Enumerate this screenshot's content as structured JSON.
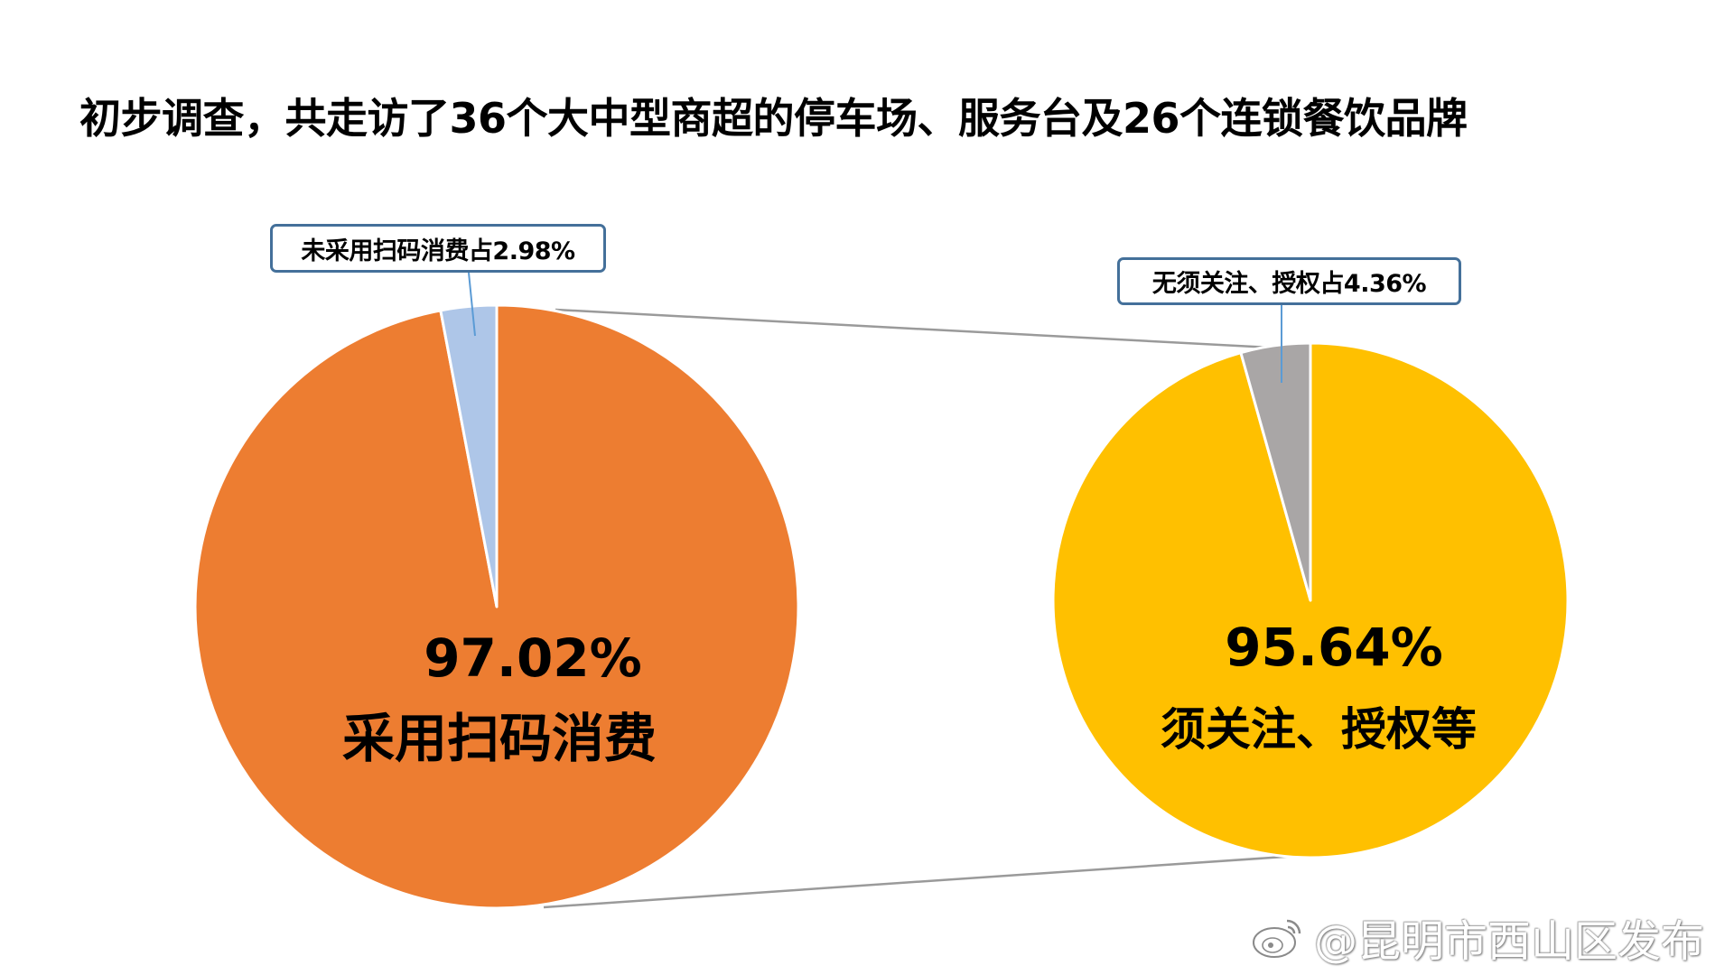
{
  "title": "初步调查，共走访了36个大中型商超的停车场、服务台及26个连锁餐饮品牌",
  "left_pie": {
    "callout": "未采用扫码消费占2.98%",
    "center_percent": "97.02%",
    "center_label": "采用扫码消费"
  },
  "right_pie": {
    "callout": "无须关注、授权占4.36%",
    "center_percent": "95.64%",
    "center_label": "须关注、授权等"
  },
  "watermark": {
    "icon": "weibo-icon",
    "text": "@昆明市西山区发布"
  },
  "colors": {
    "orange": "#ed7d31",
    "light_blue": "#aec6e8",
    "yellow": "#ffc000",
    "grey": "#a9a6a6",
    "callout_border": "#44709a",
    "connector": "#9a9a9a"
  },
  "chart_data": {
    "type": "pie",
    "title": "初步调查，共走访了36个大中型商超的停车场、服务台及26个连锁餐饮品牌",
    "layout": "pie-of-pie (two pies joined by connector lines)",
    "pies": [
      {
        "name": "扫码消费",
        "slices": [
          {
            "label": "采用扫码消费",
            "value": 97.02,
            "color": "#ed7d31"
          },
          {
            "label": "未采用扫码消费",
            "value": 2.98,
            "color": "#aec6e8"
          }
        ]
      },
      {
        "name": "关注、授权",
        "slices": [
          {
            "label": "须关注、授权等",
            "value": 95.64,
            "color": "#ffc000"
          },
          {
            "label": "无须关注、授权",
            "value": 4.36,
            "color": "#a9a6a6"
          }
        ]
      }
    ],
    "annotations": [
      "未采用扫码消费占2.98%",
      "无须关注、授权占4.36%",
      "97.02% 采用扫码消费",
      "95.64% 须关注、授权等"
    ],
    "legend": "none"
  }
}
